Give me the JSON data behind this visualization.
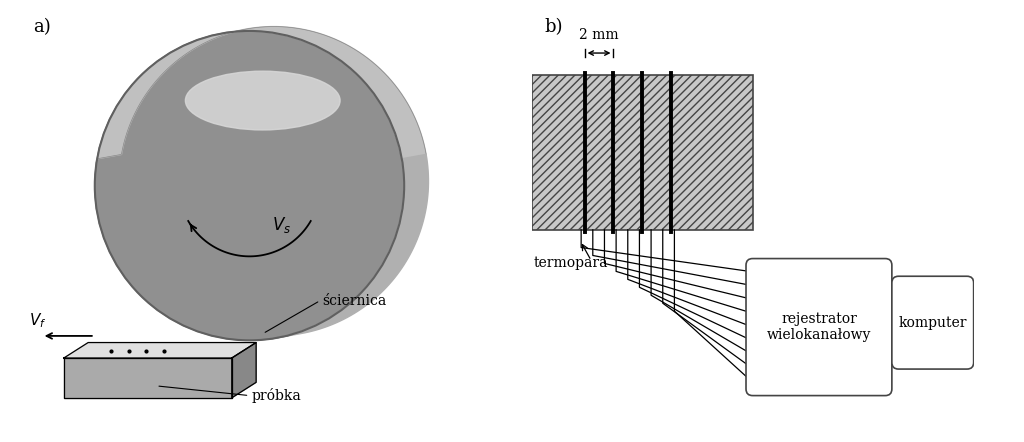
{
  "bg_color": "#ffffff",
  "label_a": "a)",
  "label_b": "b)",
  "label_sciernica": "ściernica",
  "label_probka": "próbka",
  "label_termopara": "termopara",
  "label_2mm": "2 mm",
  "label_rejestrator": "rejestrator\nwielokan ałowy",
  "label_komputer": "komputer"
}
